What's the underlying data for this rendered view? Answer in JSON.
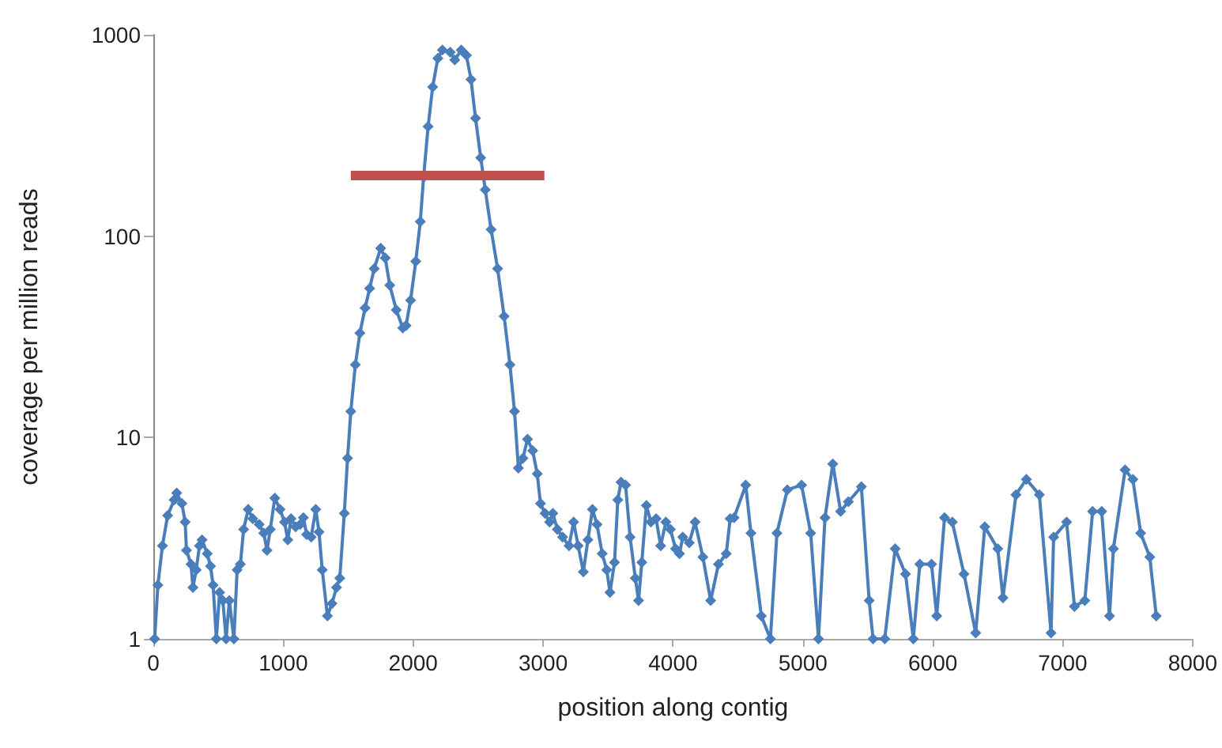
{
  "chart_data": {
    "type": "line",
    "xlabel": "position along contig",
    "ylabel": "coverage per million reads",
    "log": true,
    "grid": false,
    "xlim": [
      0,
      8000
    ],
    "xticks": [
      0,
      1000,
      2000,
      3000,
      4000,
      5000,
      6000,
      7000,
      8000
    ],
    "ylim": [
      1,
      1000
    ],
    "yticks": [
      1,
      10,
      100,
      1000
    ],
    "line_style": "solid",
    "series": [
      {
        "color": "#4a7ebb",
        "marker": "diamond",
        "x": [
          10,
          35,
          70,
          110,
          160,
          180,
          220,
          245,
          255,
          290,
          305,
          330,
          355,
          375,
          415,
          440,
          460,
          485,
          510,
          535,
          560,
          585,
          620,
          645,
          670,
          695,
          730,
          765,
          815,
          850,
          875,
          900,
          935,
          975,
          1010,
          1035,
          1060,
          1095,
          1130,
          1155,
          1180,
          1215,
          1250,
          1275,
          1300,
          1340,
          1375,
          1410,
          1435,
          1470,
          1495,
          1520,
          1555,
          1590,
          1630,
          1665,
          1700,
          1750,
          1785,
          1820,
          1870,
          1920,
          1945,
          1980,
          2020,
          2055,
          2080,
          2115,
          2150,
          2190,
          2225,
          2285,
          2320,
          2370,
          2410,
          2445,
          2480,
          2520,
          2555,
          2600,
          2650,
          2700,
          2745,
          2780,
          2810,
          2845,
          2880,
          2920,
          2955,
          2980,
          3015,
          3050,
          3075,
          3110,
          3150,
          3200,
          3235,
          3270,
          3310,
          3345,
          3380,
          3415,
          3455,
          3490,
          3515,
          3550,
          3575,
          3600,
          3635,
          3670,
          3710,
          3735,
          3760,
          3795,
          3830,
          3870,
          3905,
          3945,
          3980,
          4020,
          4050,
          4075,
          4125,
          4170,
          4230,
          4290,
          4350,
          4410,
          4440,
          4470,
          4560,
          4600,
          4680,
          4750,
          4800,
          4880,
          4990,
          5060,
          5120,
          5170,
          5230,
          5290,
          5350,
          5450,
          5510,
          5540,
          5630,
          5710,
          5790,
          5850,
          5900,
          5990,
          6030,
          6090,
          6150,
          6240,
          6330,
          6400,
          6500,
          6540,
          6640,
          6720,
          6820,
          6910,
          6930,
          7030,
          7090,
          7170,
          7230,
          7300,
          7360,
          7390,
          7480,
          7540,
          7600,
          7670,
          7720
        ],
        "values": [
          1,
          1.85,
          2.9,
          4.1,
          4.9,
          5.3,
          4.7,
          3.8,
          2.75,
          2.35,
          1.8,
          2.2,
          2.9,
          3.1,
          2.65,
          2.3,
          1.85,
          1,
          1.7,
          1.55,
          1,
          1.55,
          1,
          2.2,
          2.35,
          3.5,
          4.4,
          3.95,
          3.7,
          3.35,
          2.75,
          3.5,
          5,
          4.4,
          3.8,
          3.1,
          3.95,
          3.6,
          3.7,
          4,
          3.3,
          3.2,
          4.4,
          3.4,
          2.2,
          1.3,
          1.5,
          1.8,
          2,
          4.2,
          7.9,
          13.5,
          23,
          33,
          44,
          55,
          69,
          87,
          78,
          57,
          43,
          35,
          36,
          48,
          75,
          118,
          196,
          350,
          550,
          765,
          840,
          820,
          750,
          840,
          790,
          600,
          385,
          245,
          170,
          108,
          69,
          40,
          23,
          13.5,
          7.05,
          7.9,
          9.8,
          8.6,
          6.6,
          4.7,
          4.2,
          3.8,
          4.2,
          3.5,
          3.2,
          2.9,
          3.8,
          2.9,
          2.15,
          3.1,
          4.4,
          3.7,
          2.65,
          2.2,
          1.7,
          2.4,
          4.9,
          6,
          5.8,
          3.2,
          2,
          1.55,
          2.4,
          4.6,
          3.8,
          3.95,
          2.9,
          3.8,
          3.5,
          2.8,
          2.65,
          3.2,
          3,
          3.8,
          2.55,
          1.55,
          2.35,
          2.65,
          3.95,
          4,
          5.8,
          3.35,
          1.3,
          1,
          3.35,
          5.5,
          5.8,
          3.35,
          1,
          4,
          7.4,
          4.3,
          4.8,
          5.7,
          1.55,
          1,
          1,
          2.8,
          2.1,
          1,
          2.35,
          2.35,
          1.3,
          4,
          3.8,
          2.1,
          1.07,
          3.6,
          2.8,
          1.6,
          5.2,
          6.2,
          5.2,
          1.07,
          3.2,
          3.8,
          1.45,
          1.55,
          4.3,
          4.3,
          1.3,
          2.8,
          6.9,
          6.2,
          3.35,
          2.55,
          1.3
        ]
      },
      {
        "color": "#c0504d",
        "marker": "none",
        "x": [
          1520,
          3010
        ],
        "values": [
          200,
          200
        ]
      }
    ]
  }
}
